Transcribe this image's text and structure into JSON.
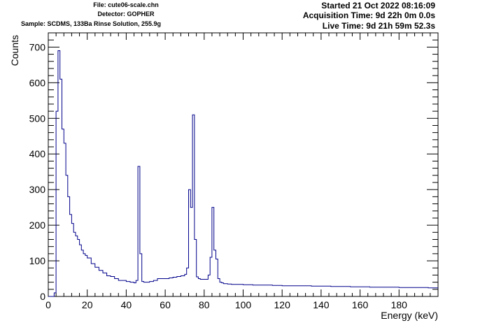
{
  "header": {
    "file": "File: cute06-scale.chn",
    "detector": "Detector: GOPHER",
    "sample": "Sample: SCDMS, 133Ba Rinse Solution, 255.9g",
    "started": "Started 21 Oct 2022 08:16:09",
    "acquisition": "Acquisition Time: 9d 22h 0m 0.0s",
    "live": "Live Time: 9d 21h 59m 52.3s"
  },
  "colors": {
    "line": "#00008b",
    "axis": "#000000",
    "background": "#ffffff"
  },
  "chart_data": {
    "type": "line",
    "xlabel": "Energy (keV)",
    "ylabel": "Counts",
    "xlim": [
      0,
      200
    ],
    "ylim": [
      0,
      740
    ],
    "x_ticks": [
      0,
      20,
      40,
      60,
      80,
      100,
      120,
      140,
      160,
      180
    ],
    "x_tick_labels": [
      "0",
      "20",
      "40",
      "60",
      "80",
      "100",
      "120",
      "140",
      "160",
      "180"
    ],
    "y_ticks": [
      0,
      100,
      200,
      300,
      400,
      500,
      600,
      700
    ],
    "y_tick_labels": [
      "0",
      "100",
      "200",
      "300",
      "400",
      "500",
      "600",
      "700"
    ],
    "grid": false,
    "legend": "none",
    "series": [
      {
        "x": [
          0,
          3,
          4,
          5,
          6,
          7,
          8,
          9,
          10,
          11,
          12,
          13,
          14,
          15,
          16,
          17,
          18,
          19,
          20,
          22,
          24,
          26,
          28,
          30,
          32,
          34,
          36,
          38,
          40,
          42,
          44,
          45,
          46,
          47,
          48,
          49,
          50,
          52,
          54,
          56,
          58,
          60,
          62,
          64,
          66,
          68,
          70,
          71,
          72,
          73,
          74,
          75,
          76,
          77,
          78,
          80,
          82,
          83,
          84,
          85,
          86,
          87,
          88,
          89,
          90,
          92,
          94,
          96,
          100,
          105,
          110,
          115,
          120,
          125,
          130,
          135,
          140,
          145,
          150,
          155,
          160,
          165,
          170,
          175,
          180,
          185,
          190,
          195,
          200
        ],
        "y": [
          0,
          10,
          520,
          690,
          610,
          470,
          430,
          340,
          280,
          230,
          205,
          180,
          170,
          160,
          145,
          130,
          120,
          115,
          108,
          92,
          82,
          73,
          66,
          58,
          56,
          50,
          45,
          45,
          42,
          40,
          38,
          45,
          365,
          120,
          42,
          40,
          40,
          42,
          45,
          50,
          50,
          50,
          52,
          54,
          56,
          58,
          62,
          80,
          300,
          250,
          510,
          160,
          55,
          50,
          48,
          48,
          60,
          110,
          250,
          130,
          105,
          50,
          40,
          38,
          36,
          35,
          34,
          34,
          33,
          32,
          32,
          31,
          30,
          30,
          30,
          29,
          29,
          28,
          28,
          27,
          27,
          26,
          26,
          26,
          25,
          25,
          25,
          24,
          24
        ]
      }
    ]
  }
}
